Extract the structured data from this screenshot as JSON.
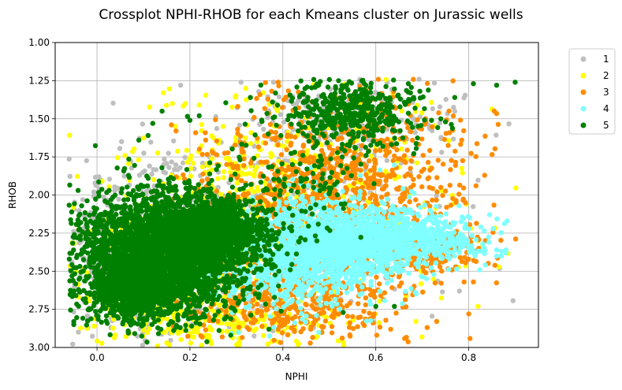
{
  "chart_data": {
    "type": "scatter",
    "title": "Crossplot NPHI-RHOB for each Kmeans cluster on Jurassic wells",
    "xlabel": "NPHI",
    "ylabel": "RHOB",
    "xlim": [
      -0.09,
      0.95
    ],
    "ylim": [
      3.0,
      1.0
    ],
    "y_inverted": true,
    "x_ticks": [
      0.0,
      0.2,
      0.4,
      0.6,
      0.8
    ],
    "x_tick_labels": [
      "0.0",
      "0.2",
      "0.4",
      "0.6",
      "0.8"
    ],
    "y_ticks": [
      1.0,
      1.25,
      1.5,
      1.75,
      2.0,
      2.25,
      2.5,
      2.75,
      3.0
    ],
    "y_tick_labels": [
      "1.00",
      "1.25",
      "1.50",
      "1.75",
      "2.00",
      "2.25",
      "2.50",
      "2.75",
      "3.00"
    ],
    "grid": true,
    "legend_position": "outside-top-right",
    "series": [
      {
        "name": "1",
        "color": "#bfbfbf",
        "clusters": [
          {
            "cx": 0.12,
            "cy": 2.35,
            "sx": 0.1,
            "sy": 0.28,
            "n": 700
          },
          {
            "cx": 0.45,
            "cy": 2.1,
            "sx": 0.18,
            "sy": 0.35,
            "n": 250
          },
          {
            "cx": 0.55,
            "cy": 1.5,
            "sx": 0.1,
            "sy": 0.12,
            "n": 150
          }
        ],
        "points": [
          {
            "x": -0.02,
            "y": 2.82
          },
          {
            "x": -0.02,
            "y": 2.87
          },
          {
            "x": 0.03,
            "y": 2.87
          },
          {
            "x": 0.18,
            "y": 1.28
          },
          {
            "x": 0.31,
            "y": 1.26
          },
          {
            "x": 0.78,
            "y": 2.63
          },
          {
            "x": 0.77,
            "y": 1.45
          },
          {
            "x": 0.02,
            "y": 2.18
          },
          {
            "x": 0.03,
            "y": 2.08
          },
          {
            "x": 0.05,
            "y": 1.97
          },
          {
            "x": 0.38,
            "y": 1.26
          }
        ]
      },
      {
        "name": "2",
        "color": "#ffff00",
        "clusters": [
          {
            "cx": 0.15,
            "cy": 2.55,
            "sx": 0.1,
            "sy": 0.25,
            "n": 400
          },
          {
            "cx": 0.35,
            "cy": 1.95,
            "sx": 0.14,
            "sy": 0.3,
            "n": 400
          },
          {
            "cx": 0.3,
            "cy": 2.85,
            "sx": 0.12,
            "sy": 0.08,
            "n": 150
          },
          {
            "cx": 0.6,
            "cy": 2.1,
            "sx": 0.15,
            "sy": 0.35,
            "n": 120
          }
        ],
        "points": [
          {
            "x": -0.04,
            "y": 2.67
          },
          {
            "x": -0.02,
            "y": 2.67
          },
          {
            "x": 0.82,
            "y": 2.3
          },
          {
            "x": 0.83,
            "y": 2.33
          },
          {
            "x": 0.13,
            "y": 2.99
          },
          {
            "x": 0.15,
            "y": 2.97
          },
          {
            "x": 0.19,
            "y": 1.4
          },
          {
            "x": 0.22,
            "y": 1.41
          },
          {
            "x": 0.82,
            "y": 2.73
          },
          {
            "x": 0.32,
            "y": 1.3
          }
        ]
      },
      {
        "name": "3",
        "color": "#ff8c00",
        "clusters": [
          {
            "cx": 0.45,
            "cy": 2.2,
            "sx": 0.12,
            "sy": 0.4,
            "n": 1100
          },
          {
            "cx": 0.4,
            "cy": 2.72,
            "sx": 0.1,
            "sy": 0.1,
            "n": 250
          },
          {
            "cx": 0.62,
            "cy": 1.85,
            "sx": 0.1,
            "sy": 0.3,
            "n": 350
          },
          {
            "cx": 0.72,
            "cy": 2.38,
            "sx": 0.06,
            "sy": 0.08,
            "n": 150
          }
        ],
        "points": [
          {
            "x": 0.39,
            "y": 1.26
          },
          {
            "x": 0.79,
            "y": 2.57
          },
          {
            "x": 0.81,
            "y": 2.57
          },
          {
            "x": 0.8,
            "y": 2.78
          },
          {
            "x": 0.17,
            "y": 1.58
          },
          {
            "x": 0.16,
            "y": 1.54
          },
          {
            "x": 0.77,
            "y": 2.27
          },
          {
            "x": 0.78,
            "y": 2.3
          },
          {
            "x": 0.74,
            "y": 1.95
          },
          {
            "x": 0.46,
            "y": 2.88
          }
        ]
      },
      {
        "name": "4",
        "color": "#7fffff",
        "clusters": [
          {
            "cx": 0.5,
            "cy": 2.32,
            "sx": 0.1,
            "sy": 0.14,
            "n": 1600
          },
          {
            "cx": 0.68,
            "cy": 2.28,
            "sx": 0.08,
            "sy": 0.08,
            "n": 500
          },
          {
            "cx": 0.38,
            "cy": 2.55,
            "sx": 0.08,
            "sy": 0.12,
            "n": 300
          }
        ],
        "points": [
          {
            "x": 0.86,
            "y": 2.36
          },
          {
            "x": 0.87,
            "y": 2.37
          },
          {
            "x": 0.87,
            "y": 2.4
          },
          {
            "x": 0.88,
            "y": 2.36
          },
          {
            "x": 0.86,
            "y": 2.4
          },
          {
            "x": 0.88,
            "y": 2.38
          },
          {
            "x": 0.75,
            "y": 2.2
          },
          {
            "x": 0.8,
            "y": 2.35
          }
        ]
      },
      {
        "name": "5",
        "color": "#008000",
        "clusters": [
          {
            "cx": 0.14,
            "cy": 2.38,
            "sx": 0.09,
            "sy": 0.2,
            "n": 3000
          },
          {
            "cx": 0.08,
            "cy": 2.6,
            "sx": 0.05,
            "sy": 0.1,
            "n": 900
          },
          {
            "cx": 0.25,
            "cy": 2.25,
            "sx": 0.06,
            "sy": 0.12,
            "n": 900
          },
          {
            "cx": 0.55,
            "cy": 1.45,
            "sx": 0.07,
            "sy": 0.1,
            "n": 450
          },
          {
            "cx": 0.45,
            "cy": 1.85,
            "sx": 0.08,
            "sy": 0.25,
            "n": 150
          }
        ],
        "points": [
          {
            "x": -0.05,
            "y": 2.85
          },
          {
            "x": -0.05,
            "y": 2.83
          },
          {
            "x": 0.9,
            "y": 1.26
          },
          {
            "x": 0.86,
            "y": 1.28
          },
          {
            "x": 0.81,
            "y": 1.27
          },
          {
            "x": 0.77,
            "y": 1.36
          },
          {
            "x": 0.75,
            "y": 1.52
          },
          {
            "x": 0.74,
            "y": 1.5
          },
          {
            "x": 0.72,
            "y": 1.51
          },
          {
            "x": 0.64,
            "y": 2.73
          },
          {
            "x": 0.6,
            "y": 2.73
          },
          {
            "x": 0.09,
            "y": 1.64
          },
          {
            "x": 0.11,
            "y": 1.61
          },
          {
            "x": 0.12,
            "y": 1.53
          },
          {
            "x": 0.14,
            "y": 1.45
          },
          {
            "x": 0.2,
            "y": 1.51
          },
          {
            "x": 0.22,
            "y": 1.48
          },
          {
            "x": 0.33,
            "y": 1.36
          },
          {
            "x": 0.53,
            "y": 2.77
          },
          {
            "x": 0.1,
            "y": 2.85
          },
          {
            "x": 0.37,
            "y": 2.88
          },
          {
            "x": 0.52,
            "y": 1.25
          },
          {
            "x": 0.57,
            "y": 1.25
          },
          {
            "x": 0.67,
            "y": 1.27
          }
        ]
      }
    ]
  }
}
